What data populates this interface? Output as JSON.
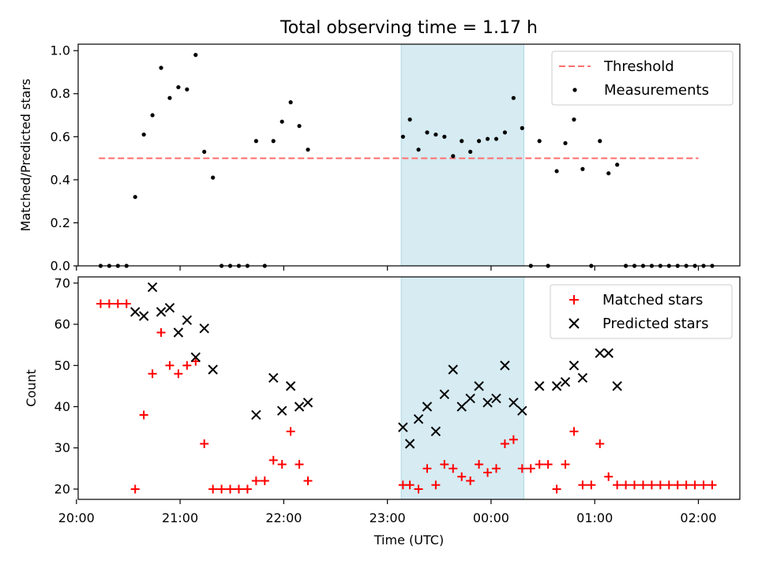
{
  "chart_data": [
    {
      "type": "scatter",
      "title": "Total observing time = 1.17 h",
      "xlabel": "",
      "ylabel": "Matched/Predicted stars",
      "xlim": [
        "20:01",
        "02:24"
      ],
      "ylim": [
        0,
        1.03
      ],
      "yticks": [
        0.0,
        0.2,
        0.4,
        0.6,
        0.8,
        1.0
      ],
      "yticklabels": [
        "0.0",
        "0.2",
        "0.4",
        "0.6",
        "0.8",
        "1.0"
      ],
      "grid": false,
      "legend": "top-right",
      "highlight_span": {
        "x": [
          "23:08",
          "00:19"
        ],
        "color": "#add8e6"
      },
      "threshold": {
        "name": "Threshold",
        "value": 0.5,
        "x": [
          "20:13",
          "02:00"
        ],
        "color": "#ff6e6e"
      },
      "series": [
        {
          "name": "Measurements",
          "color": "#000000",
          "marker": "dot",
          "points": [
            [
              "20:14",
              0
            ],
            [
              "20:19",
              0
            ],
            [
              "20:24",
              0
            ],
            [
              "20:29",
              0
            ],
            [
              "20:34",
              0.32
            ],
            [
              "20:39",
              0.61
            ],
            [
              "20:44",
              0.7
            ],
            [
              "20:49",
              0.92
            ],
            [
              "20:54",
              0.78
            ],
            [
              "20:59",
              0.83
            ],
            [
              "21:04",
              0.82
            ],
            [
              "21:09",
              0.98
            ],
            [
              "21:14",
              0.53
            ],
            [
              "21:19",
              0.41
            ],
            [
              "21:24",
              0
            ],
            [
              "21:29",
              0
            ],
            [
              "21:34",
              0
            ],
            [
              "21:39",
              0
            ],
            [
              "21:44",
              0.58
            ],
            [
              "21:49",
              0
            ],
            [
              "21:54",
              0.58
            ],
            [
              "21:59",
              0.67
            ],
            [
              "22:04",
              0.76
            ],
            [
              "22:09",
              0.65
            ],
            [
              "22:14",
              0.54
            ],
            [
              "23:09",
              0.6
            ],
            [
              "23:13",
              0.68
            ],
            [
              "23:18",
              0.54
            ],
            [
              "23:23",
              0.62
            ],
            [
              "23:28",
              0.61
            ],
            [
              "23:33",
              0.6
            ],
            [
              "23:38",
              0.51
            ],
            [
              "23:43",
              0.58
            ],
            [
              "23:48",
              0.53
            ],
            [
              "23:53",
              0.58
            ],
            [
              "23:58",
              0.59
            ],
            [
              "00:03",
              0.59
            ],
            [
              "00:08",
              0.62
            ],
            [
              "00:13",
              0.78
            ],
            [
              "00:18",
              0.64
            ],
            [
              "00:23",
              0
            ],
            [
              "00:28",
              0.58
            ],
            [
              "00:33",
              0
            ],
            [
              "00:38",
              0.44
            ],
            [
              "00:43",
              0.57
            ],
            [
              "00:48",
              0.68
            ],
            [
              "00:53",
              0.45
            ],
            [
              "00:58",
              0
            ],
            [
              "01:03",
              0.58
            ],
            [
              "01:08",
              0.43
            ],
            [
              "01:13",
              0.47
            ],
            [
              "01:18",
              0
            ],
            [
              "01:23",
              0
            ],
            [
              "01:28",
              0
            ],
            [
              "01:33",
              0
            ],
            [
              "01:38",
              0
            ],
            [
              "01:43",
              0
            ],
            [
              "01:48",
              0
            ],
            [
              "01:53",
              0
            ],
            [
              "01:58",
              0
            ],
            [
              "02:03",
              0
            ],
            [
              "02:08",
              0
            ]
          ]
        }
      ]
    },
    {
      "type": "scatter",
      "title": "",
      "xlabel": "Time (UTC)",
      "ylabel": "Count",
      "xlim": [
        "20:01",
        "02:24"
      ],
      "ylim": [
        17.5,
        71.5
      ],
      "yticks": [
        20,
        30,
        40,
        50,
        60,
        70
      ],
      "yticklabels": [
        "20",
        "30",
        "40",
        "50",
        "60",
        "70"
      ],
      "xticks": [
        "20:00",
        "21:00",
        "22:00",
        "23:00",
        "00:00",
        "01:00",
        "02:00"
      ],
      "xticklabels": [
        "20:00",
        "21:00",
        "22:00",
        "23:00",
        "00:00",
        "01:00",
        "02:00"
      ],
      "grid": false,
      "legend": "top-right",
      "highlight_span": {
        "x": [
          "23:08",
          "00:19"
        ],
        "color": "#add8e6"
      },
      "series": [
        {
          "name": "Matched stars",
          "color": "#ff0000",
          "marker": "plus",
          "points": [
            [
              "20:14",
              65
            ],
            [
              "20:19",
              65
            ],
            [
              "20:24",
              65
            ],
            [
              "20:29",
              65
            ],
            [
              "20:34",
              20
            ],
            [
              "20:39",
              38
            ],
            [
              "20:44",
              48
            ],
            [
              "20:49",
              58
            ],
            [
              "20:54",
              50
            ],
            [
              "20:59",
              48
            ],
            [
              "21:04",
              50
            ],
            [
              "21:09",
              51
            ],
            [
              "21:14",
              31
            ],
            [
              "21:19",
              20
            ],
            [
              "21:24",
              20
            ],
            [
              "21:29",
              20
            ],
            [
              "21:34",
              20
            ],
            [
              "21:39",
              20
            ],
            [
              "21:44",
              22
            ],
            [
              "21:49",
              22
            ],
            [
              "21:54",
              27
            ],
            [
              "21:59",
              26
            ],
            [
              "22:04",
              34
            ],
            [
              "22:09",
              26
            ],
            [
              "22:14",
              22
            ],
            [
              "23:09",
              21
            ],
            [
              "23:13",
              21
            ],
            [
              "23:18",
              20
            ],
            [
              "23:23",
              25
            ],
            [
              "23:28",
              21
            ],
            [
              "23:33",
              26
            ],
            [
              "23:38",
              25
            ],
            [
              "23:43",
              23
            ],
            [
              "23:48",
              22
            ],
            [
              "23:53",
              26
            ],
            [
              "23:58",
              24
            ],
            [
              "00:03",
              25
            ],
            [
              "00:08",
              31
            ],
            [
              "00:13",
              32
            ],
            [
              "00:18",
              25
            ],
            [
              "00:23",
              25
            ],
            [
              "00:28",
              26
            ],
            [
              "00:33",
              26
            ],
            [
              "00:38",
              20
            ],
            [
              "00:43",
              26
            ],
            [
              "00:48",
              34
            ],
            [
              "00:53",
              21
            ],
            [
              "00:58",
              21
            ],
            [
              "01:03",
              31
            ],
            [
              "01:08",
              23
            ],
            [
              "01:13",
              21
            ],
            [
              "01:18",
              21
            ],
            [
              "01:23",
              21
            ],
            [
              "01:28",
              21
            ],
            [
              "01:33",
              21
            ],
            [
              "01:38",
              21
            ],
            [
              "01:43",
              21
            ],
            [
              "01:48",
              21
            ],
            [
              "01:53",
              21
            ],
            [
              "01:58",
              21
            ],
            [
              "02:03",
              21
            ],
            [
              "02:08",
              21
            ]
          ]
        },
        {
          "name": "Predicted stars",
          "color": "#000000",
          "marker": "x",
          "points": [
            [
              "20:34",
              63
            ],
            [
              "20:39",
              62
            ],
            [
              "20:44",
              69
            ],
            [
              "20:49",
              63
            ],
            [
              "20:54",
              64
            ],
            [
              "20:59",
              58
            ],
            [
              "21:04",
              61
            ],
            [
              "21:09",
              52
            ],
            [
              "21:14",
              59
            ],
            [
              "21:19",
              49
            ],
            [
              "21:44",
              38
            ],
            [
              "21:54",
              47
            ],
            [
              "21:59",
              39
            ],
            [
              "22:04",
              45
            ],
            [
              "22:09",
              40
            ],
            [
              "22:14",
              41
            ],
            [
              "23:09",
              35
            ],
            [
              "23:13",
              31
            ],
            [
              "23:18",
              37
            ],
            [
              "23:23",
              40
            ],
            [
              "23:28",
              34
            ],
            [
              "23:33",
              43
            ],
            [
              "23:38",
              49
            ],
            [
              "23:43",
              40
            ],
            [
              "23:48",
              42
            ],
            [
              "23:53",
              45
            ],
            [
              "23:58",
              41
            ],
            [
              "00:03",
              42
            ],
            [
              "00:08",
              50
            ],
            [
              "00:13",
              41
            ],
            [
              "00:18",
              39
            ],
            [
              "00:28",
              45
            ],
            [
              "00:38",
              45
            ],
            [
              "00:43",
              46
            ],
            [
              "00:48",
              50
            ],
            [
              "00:53",
              47
            ],
            [
              "01:03",
              53
            ],
            [
              "01:08",
              53
            ],
            [
              "01:13",
              45
            ]
          ]
        }
      ]
    }
  ]
}
